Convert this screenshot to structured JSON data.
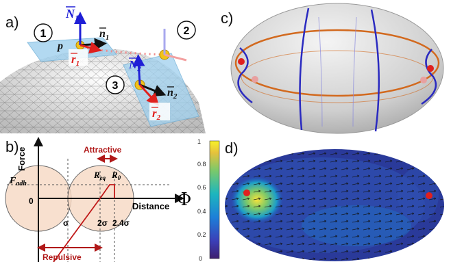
{
  "panels": {
    "a": {
      "letter": "a)",
      "circled": [
        "1",
        "2",
        "3"
      ],
      "vectors": {
        "N1": "N",
        "N1_sub": "1",
        "n1": "n",
        "n1_sub": "1",
        "N2": "N",
        "N2_sub": "2",
        "n2": "n",
        "n2_sub": "2",
        "r1": "r",
        "r1_sub": "1",
        "r2": "r",
        "r2_sub": "2"
      },
      "point_label": "p"
    },
    "b": {
      "letter": "b)",
      "y_axis": "Force",
      "x_axis": "Distance",
      "f_adh": "F",
      "f_adh_sub": "adh",
      "zero": "0",
      "sigma": "σ",
      "two_sigma": "2σ",
      "two_four_sigma": "2.4σ",
      "r_eq": "R",
      "r_eq_sub": "eq",
      "r0": "R",
      "r0_sub": "0",
      "attractive": "Attractive",
      "repulsive": "Repulsive"
    },
    "c": {
      "letter": "c)"
    },
    "d": {
      "letter": "d)",
      "colorbar_label": "Φ",
      "colorbar_ticks": [
        "1",
        "0.8",
        "0.6",
        "0.4",
        "0.2",
        "0"
      ]
    }
  },
  "colors": {
    "blue_arrow": "#1f1fd6",
    "red_arrow": "#e0201e",
    "dark_red": "#b01818",
    "orange_ring": "#d2691e",
    "tangent_plane": "#9fd0ee",
    "pink_disk": "#f7d9c4"
  }
}
